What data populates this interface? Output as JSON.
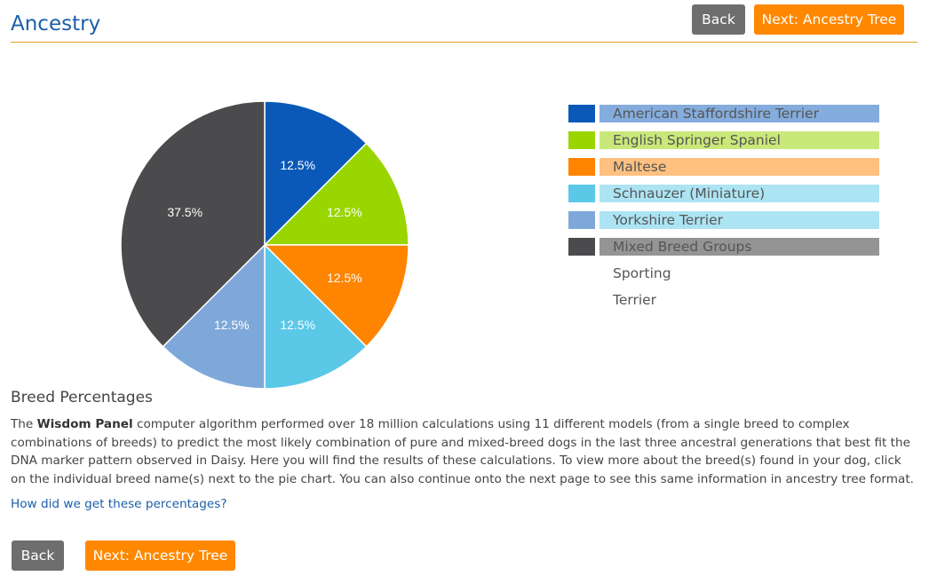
{
  "header": {
    "title": "Ancestry",
    "back_label": "Back",
    "next_label": "Next: Ancestry Tree"
  },
  "chart_data": {
    "type": "pie",
    "slices": [
      {
        "label": "American Staffordshire Terrier",
        "value": 12.5,
        "display": "12.5%",
        "color": "#0a59b8"
      },
      {
        "label": "English Springer Spaniel",
        "value": 12.5,
        "display": "12.5%",
        "color": "#99d600"
      },
      {
        "label": "Maltese",
        "value": 12.5,
        "display": "12.5%",
        "color": "#ff8400"
      },
      {
        "label": "Schnauzer (Miniature)",
        "value": 12.5,
        "display": "12.5%",
        "color": "#5bc8e8"
      },
      {
        "label": "Yorkshire Terrier",
        "value": 12.5,
        "display": "12.5%",
        "color": "#7fa8da"
      },
      {
        "label": "Mixed Breed Groups",
        "value": 37.5,
        "display": "37.5%",
        "color": "#4b4b4d"
      }
    ]
  },
  "legend": {
    "items": [
      {
        "label": "American Staffordshire Terrier",
        "swatch": "#0a59b8",
        "bar": "#84acdc"
      },
      {
        "label": "English Springer Spaniel",
        "swatch": "#99d600",
        "bar": "#c9e87a"
      },
      {
        "label": "Maltese",
        "swatch": "#ff8400",
        "bar": "#ffc080"
      },
      {
        "label": "Schnauzer (Miniature)",
        "swatch": "#5bc8e8",
        "bar": "#ace4f3"
      },
      {
        "label": "Yorkshire Terrier",
        "swatch": "#7fa8da",
        "bar": "#ace4f3"
      },
      {
        "label": "Mixed Breed Groups",
        "swatch": "#4b4b4d",
        "bar": "#949494"
      }
    ],
    "sub_items": [
      "Sporting",
      "Terrier"
    ]
  },
  "content": {
    "heading": "Breed Percentages",
    "desc_prefix": "The ",
    "desc_brand": "Wisdom Panel",
    "desc_rest": " computer algorithm performed over 18 million calculations using 11 different models (from a single breed to complex combinations of breeds) to predict the most likely combination of pure and mixed-breed dogs in the last three ancestral generations that best fit the DNA marker pattern observed in Daisy. Here you will find the results of these calculations. To view more about the breed(s) found in your dog, click on the individual breed name(s) next to the pie chart. You can also continue onto the next page to see this same information in ancestry tree format.",
    "help_link": "How did we get these percentages?"
  },
  "footer": {
    "back_label": "Back",
    "next_label": "Next: Ancestry Tree"
  }
}
